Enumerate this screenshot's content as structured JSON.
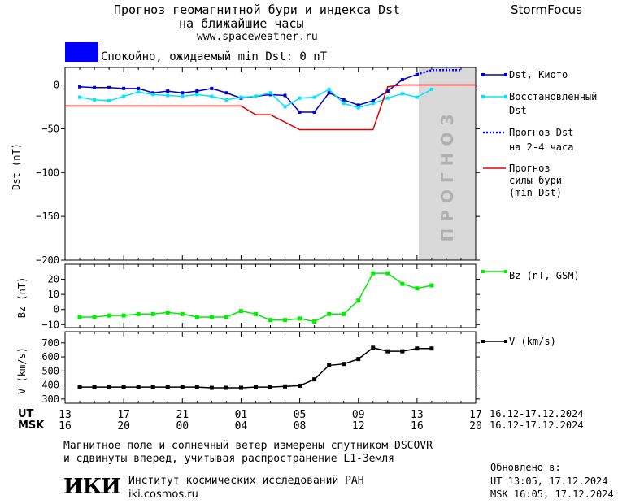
{
  "header": {
    "title_line1": "Прогноз геомагнитной бури и индекса Dst",
    "title_line2": "на ближайшие часы",
    "site": "www.spaceweather.ru",
    "brand": "StormFocus"
  },
  "status": {
    "text": "Спокойно, ожидаемый min Dst: 0 nT",
    "color": "#0000ff"
  },
  "forecast_band_label": "ПРОГНОЗ",
  "legend": {
    "dst_kyoto": "Dst, Киото",
    "restored_1": "Восстановленный",
    "restored_2": "Dst",
    "forecast_1": "Прогноз Dst",
    "forecast_2": "на 2-4 часа",
    "storm_1": "Прогноз",
    "storm_2": "силы бури",
    "storm_3": "(min Dst)",
    "bz": "Bz (nT, GSM)",
    "v": "V (km/s)"
  },
  "time_axis": {
    "ut_label": "UT",
    "msk_label": "MSK",
    "ut_ticks": [
      "13",
      "17",
      "21",
      "01",
      "05",
      "09",
      "13",
      "17"
    ],
    "msk_ticks": [
      "16",
      "20",
      "00",
      "04",
      "08",
      "12",
      "16",
      "20"
    ],
    "ut_range": "16.12-17.12.2024",
    "msk_range": "16.12-17.12.2024"
  },
  "footer": {
    "note_1": "Магнитное поле и солнечный ветер измерены спутником DSCOVR",
    "note_2": "и сдвинуты вперед, учитывая распространение L1-Земля",
    "updated_label": "Обновлено в:",
    "updated_ut": "UT  13:05, 17.12.2024",
    "updated_msk": "MSK 16:05, 17.12.2024",
    "logo": "ИКИ",
    "institute": "Институт космических исследований РАН",
    "institute_site": "iki.cosmos.ru"
  },
  "colors": {
    "dst": "#0000cc",
    "restored": "#00e5ff",
    "forecast": "#0000ff",
    "storm": "#e00000",
    "bz": "#00ee00",
    "v": "#000000",
    "band": "#d9d9d9"
  },
  "chart_data": [
    {
      "type": "line",
      "ylabel": "Dst (nT)",
      "ylim": [
        -200,
        20
      ],
      "yticks": [
        0,
        -50,
        -100,
        -150,
        -200
      ],
      "xlim": [
        0,
        28
      ],
      "forecast_band": [
        24,
        28
      ],
      "series": [
        {
          "name": "Dst, Киото",
          "x": [
            1,
            2,
            3,
            4,
            5,
            6,
            7,
            8,
            9,
            10,
            11,
            12,
            13,
            14,
            15,
            16,
            17,
            18,
            19,
            20,
            21,
            22,
            23,
            24
          ],
          "values": [
            -2,
            -3,
            -3,
            -4,
            -4,
            -9,
            -7,
            -9,
            -7,
            -4,
            -9,
            -15,
            -13,
            -11,
            -12,
            -31,
            -31,
            -9,
            -17,
            -23,
            -18,
            -7,
            6,
            12
          ]
        },
        {
          "name": "Восстановленный Dst",
          "x": [
            1,
            2,
            3,
            4,
            5,
            6,
            7,
            8,
            9,
            10,
            11,
            12,
            13,
            14,
            15,
            16,
            17,
            18,
            19,
            20,
            21,
            22,
            23,
            24,
            25
          ],
          "values": [
            -14,
            -17,
            -18,
            -13,
            -8,
            -11,
            -12,
            -13,
            -11,
            -13,
            -17,
            -14,
            -13,
            -9,
            -25,
            -15,
            -14,
            -5,
            -21,
            -26,
            -21,
            -15,
            -10,
            -14,
            -5
          ]
        },
        {
          "name": "Прогноз Dst на 2-4 часа",
          "x": [
            24,
            25,
            26,
            27
          ],
          "values": [
            12,
            17,
            17,
            17
          ]
        },
        {
          "name": "Прогноз силы бури (min Dst)",
          "x": [
            0,
            12,
            13,
            14,
            16,
            18,
            19,
            21,
            22,
            23,
            24,
            25,
            26,
            28
          ],
          "values": [
            -24,
            -24,
            -34,
            -34,
            -51,
            -51,
            -51,
            -51,
            -2,
            0,
            0,
            0,
            0,
            0
          ]
        }
      ]
    },
    {
      "type": "line",
      "ylabel": "Bz (nT)",
      "ylim": [
        -12,
        30
      ],
      "yticks": [
        20,
        10,
        0,
        -10
      ],
      "series": [
        {
          "name": "Bz (nT, GSM)",
          "x": [
            1,
            2,
            3,
            4,
            5,
            6,
            7,
            8,
            9,
            10,
            11,
            12,
            13,
            14,
            15,
            16,
            17,
            18,
            19,
            20,
            21,
            22,
            23,
            24,
            25
          ],
          "values": [
            -5,
            -5,
            -4,
            -4,
            -3,
            -3,
            -2,
            -3,
            -5,
            -5,
            -5,
            -1,
            -3,
            -7,
            -7,
            -6,
            -8,
            -3,
            -3,
            6,
            24,
            24,
            17,
            14,
            16
          ]
        }
      ]
    },
    {
      "type": "line",
      "ylabel": "V (km/s)",
      "ylim": [
        270,
        780
      ],
      "yticks": [
        700,
        600,
        500,
        400,
        300
      ],
      "series": [
        {
          "name": "V (km/s)",
          "x": [
            1,
            2,
            3,
            4,
            5,
            6,
            7,
            8,
            9,
            10,
            11,
            12,
            13,
            14,
            15,
            16,
            17,
            18,
            19,
            20,
            21,
            22,
            23,
            24,
            25
          ],
          "values": [
            385,
            385,
            385,
            385,
            385,
            385,
            385,
            385,
            385,
            380,
            380,
            380,
            385,
            385,
            390,
            395,
            440,
            540,
            550,
            585,
            665,
            640,
            640,
            660,
            660
          ]
        }
      ]
    }
  ]
}
